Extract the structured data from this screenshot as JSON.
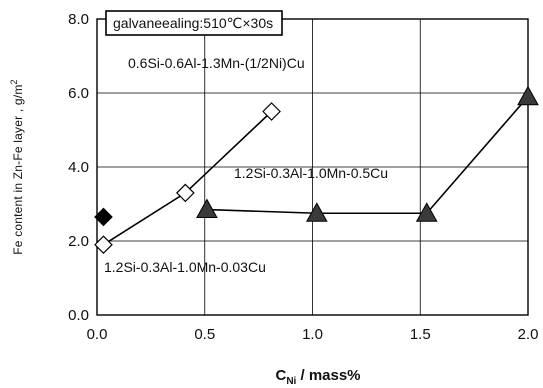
{
  "chart_data": {
    "type": "scatter",
    "title": "",
    "xlabel_main": "C",
    "xlabel_sub": "Ni",
    "xlabel_rest": " / mass%",
    "ylabel": "Fe content in Zn-Fe layer , g/m",
    "ylabel_sup": "2",
    "xlim": [
      0,
      2.0
    ],
    "ylim": [
      0,
      8.0
    ],
    "x_ticks": [
      0.0,
      0.5,
      1.0,
      1.5,
      2.0
    ],
    "x_tick_labels": [
      "0.0",
      "0.5",
      "1.0",
      "1.5",
      "2.0"
    ],
    "y_ticks": [
      0.0,
      2.0,
      4.0,
      6.0,
      8.0
    ],
    "y_tick_labels": [
      "0.0",
      "2.0",
      "4.0",
      "6.0",
      "8.0"
    ],
    "grid": true,
    "annotation_box": "galvaneealing:510℃×30s",
    "series": [
      {
        "label": "0.6Si-0.6Al-1.3Mn-(1/2Ni)Cu",
        "marker": "diamond-open",
        "line": true,
        "color": "#000000",
        "x": [
          0.03,
          0.41,
          0.81
        ],
        "y": [
          1.9,
          3.3,
          5.5
        ]
      },
      {
        "label": "1.2Si-0.3Al-1.0Mn-0.5Cu",
        "marker": "triangle-filled",
        "line": true,
        "color": "#000000",
        "x": [
          0.51,
          1.02,
          1.53,
          2.0
        ],
        "y": [
          2.85,
          2.75,
          2.75,
          5.9
        ]
      },
      {
        "label": "1.2Si-0.3Al-1.0Mn-0.03Cu",
        "marker": "diamond-filled",
        "line": false,
        "color": "#000000",
        "x": [
          0.03
        ],
        "y": [
          2.65
        ]
      }
    ]
  }
}
